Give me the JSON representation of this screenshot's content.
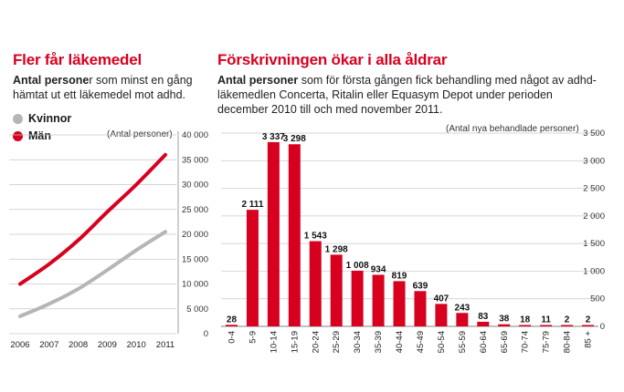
{
  "left": {
    "title": "Fler får läkemedel",
    "lead_bold": "Antal persone",
    "lead_rest": "r som minst en gång hämtat ut ett läkemedel mot adhd.",
    "unit": "(Antal personer)"
  },
  "right": {
    "title": "Förskrivningen ökar i alla åldrar",
    "lead_bold": "Antal personer",
    "lead_rest": " som för första gången fick behandling med något av adhd-läkemedlen Concerta, Ritalin eller Equasym Depot under perioden december 2010 till och med november 2011.",
    "unit": "(Antal nya behandlade personer)"
  },
  "colors": {
    "accent": "#d8001f",
    "grey": "#b5b5b5",
    "grid": "#c8c8c8"
  },
  "chart_data": [
    {
      "type": "line",
      "x": [
        2006,
        2007,
        2008,
        2009,
        2010,
        2011
      ],
      "series": [
        {
          "name": "Kvinnor",
          "values": [
            3500,
            6000,
            9000,
            12800,
            16800,
            20500
          ],
          "color": "#b5b5b5"
        },
        {
          "name": "Män",
          "values": [
            10000,
            14000,
            18800,
            24500,
            30000,
            36000
          ],
          "color": "#d8001f"
        }
      ],
      "ylim": [
        0,
        40000
      ],
      "yticks": [
        0,
        5000,
        10000,
        15000,
        20000,
        25000,
        30000,
        35000,
        40000
      ],
      "ytick_labels": [
        "0",
        "5 000",
        "10 000",
        "15 000",
        "20 000",
        "25 000",
        "30 000",
        "35 000",
        "40 000"
      ],
      "xtick_labels": [
        "2006",
        "2007",
        "2008",
        "2009",
        "2010",
        "2011"
      ],
      "grid": true,
      "legend": "top-left"
    },
    {
      "type": "bar",
      "categories": [
        "0-4",
        "5-9",
        "10-14",
        "15-19",
        "20-24",
        "25-29",
        "30-34",
        "35-39",
        "40-44",
        "45-49",
        "50-54",
        "55-59",
        "60-64",
        "65-69",
        "70-74",
        "75-79",
        "80-84",
        "85 +"
      ],
      "values": [
        28,
        2111,
        3337,
        3298,
        1543,
        1298,
        1008,
        934,
        819,
        639,
        407,
        243,
        83,
        38,
        18,
        11,
        2,
        2
      ],
      "value_labels": [
        "28",
        "2 111",
        "3 337",
        "3 298",
        "1 543",
        "1 298",
        "1 008",
        "934",
        "819",
        "639",
        "407",
        "243",
        "83",
        "38",
        "18",
        "11",
        "2",
        "2"
      ],
      "ylim": [
        0,
        3500
      ],
      "yticks": [
        0,
        500,
        1000,
        1500,
        2000,
        2500,
        3000,
        3500
      ],
      "ytick_labels": [
        "0",
        "500",
        "1 000",
        "1 500",
        "2 000",
        "2 500",
        "3 000",
        "3 500"
      ],
      "grid": true,
      "color": "#d8001f"
    }
  ]
}
